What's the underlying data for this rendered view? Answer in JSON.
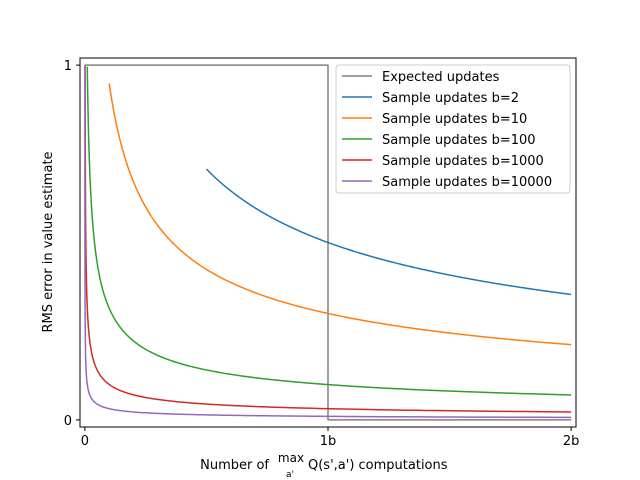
{
  "chart_data": {
    "type": "line",
    "xlabel_prefix": "Number of",
    "xlabel_max": "max",
    "xlabel_sub": "a'",
    "xlabel_suffix": "Q(s',a') computations",
    "ylabel": "RMS error in value estimate",
    "xlim": [
      -0.02,
      2.02
    ],
    "ylim": [
      -0.02,
      1.02
    ],
    "xticks": [
      {
        "value": 0,
        "label": "0"
      },
      {
        "value": 1,
        "label": "1b"
      },
      {
        "value": 2,
        "label": "2b"
      }
    ],
    "yticks": [
      {
        "value": 0,
        "label": "0"
      },
      {
        "value": 1,
        "label": "1"
      }
    ],
    "grid": false,
    "legend_position": "top-right",
    "series": [
      {
        "name": "Expected updates",
        "color": "#808080",
        "kind": "step",
        "points": [
          [
            0,
            1
          ],
          [
            1,
            1
          ],
          [
            1,
            0
          ],
          [
            2,
            0
          ]
        ]
      },
      {
        "name": "Sample updates b=2",
        "color": "#1f77b4",
        "b": 2,
        "x_start": 0.5
      },
      {
        "name": "Sample updates b=10",
        "color": "#ff7f0e",
        "b": 10,
        "x_start": 0.1
      },
      {
        "name": "Sample updates b=100",
        "color": "#2ca02c",
        "b": 100,
        "x_start": 0.01
      },
      {
        "name": "Sample updates b=1000",
        "color": "#d62728",
        "b": 1000,
        "x_start": 0.001
      },
      {
        "name": "Sample updates b=10000",
        "color": "#9467bd",
        "b": 10000,
        "x_start": 0.0001
      }
    ]
  }
}
